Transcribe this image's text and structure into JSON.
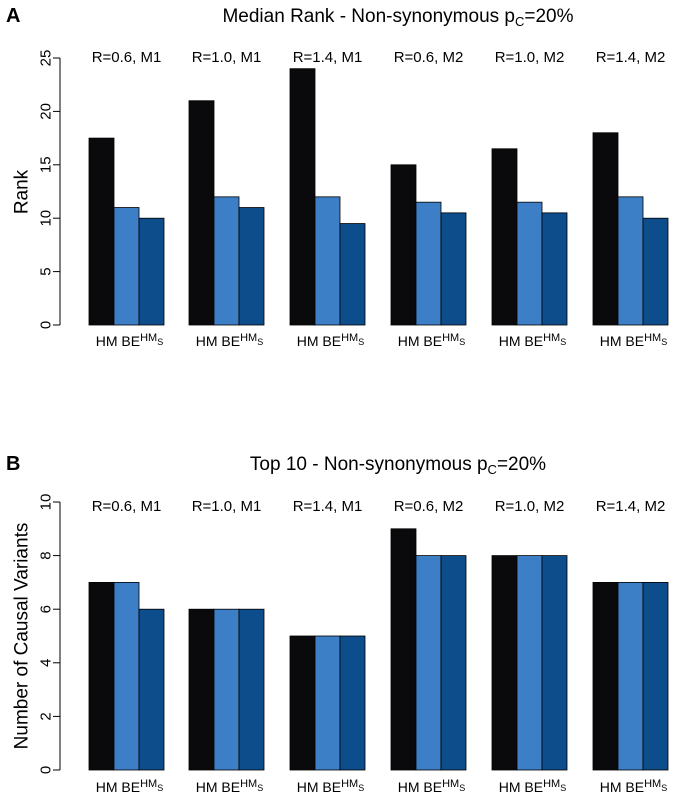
{
  "chart_data": [
    {
      "type": "bar",
      "panel": "A",
      "title_main": "Median Rank - Non-synonymous p",
      "title_sub": "C",
      "title_tail": "=20%",
      "ylabel": "Rank",
      "ylim": [
        0,
        25
      ],
      "yticks": [
        0,
        5,
        10,
        15,
        20,
        25
      ],
      "groups": [
        "R=0.6, M1",
        "R=1.0, M1",
        "R=1.4, M1",
        "R=0.6, M2",
        "R=1.0, M2",
        "R=1.4, M2"
      ],
      "category_labels": [
        "HM",
        "BE",
        "HM",
        "S"
      ],
      "series": [
        {
          "values": [
            17.5,
            21,
            24,
            15,
            16.5,
            18
          ],
          "color": "#0a0a0c"
        },
        {
          "values": [
            11,
            12,
            12,
            11.5,
            11.5,
            12
          ],
          "color": "#3d7fc6"
        },
        {
          "values": [
            10,
            11,
            9.5,
            10.5,
            10.5,
            10
          ],
          "color": "#0e4d8c"
        }
      ]
    },
    {
      "type": "bar",
      "panel": "B",
      "title_main": "Top 10 - Non-synonymous p",
      "title_sub": "C",
      "title_tail": "=20%",
      "ylabel": "Number of Causal Variants",
      "ylim": [
        0,
        10
      ],
      "yticks": [
        0,
        2,
        4,
        6,
        8,
        10
      ],
      "groups": [
        "R=0.6, M1",
        "R=1.0, M1",
        "R=1.4, M1",
        "R=0.6, M2",
        "R=1.0, M2",
        "R=1.4, M2"
      ],
      "category_labels": [
        "HM",
        "BE",
        "HM",
        "S"
      ],
      "series": [
        {
          "values": [
            7,
            6,
            5,
            9,
            8,
            7
          ],
          "color": "#0a0a0c"
        },
        {
          "values": [
            7,
            6,
            5,
            8,
            8,
            7
          ],
          "color": "#3d7fc6"
        },
        {
          "values": [
            6,
            6,
            5,
            8,
            8,
            7
          ],
          "color": "#0e4d8c"
        }
      ]
    }
  ]
}
